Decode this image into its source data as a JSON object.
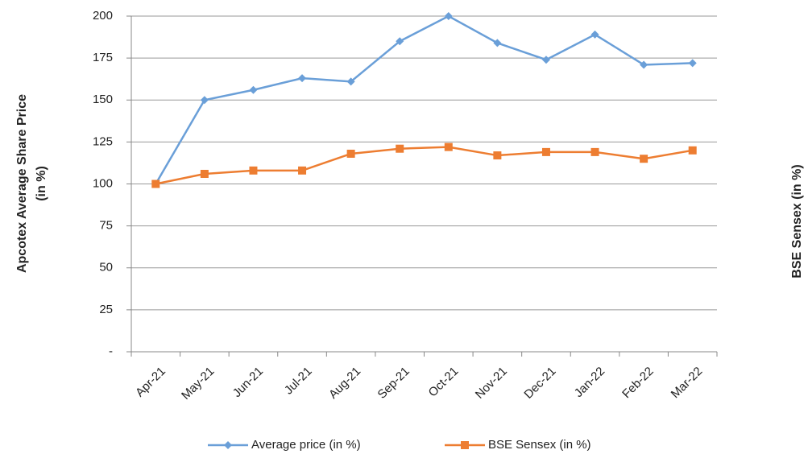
{
  "chart_data": {
    "type": "line",
    "y_label": [
      "Apcotex Average Share Price",
      "(in %)"
    ],
    "y2_label": "BSE Sensex (in %)",
    "categories": [
      "Apr-21",
      "May-21",
      "Jun-21",
      "Jul-21",
      "Aug-21",
      "Sep-21",
      "Oct-21",
      "Nov-21",
      "Dec-21",
      "Jan-22",
      "Feb-22",
      "Mar-22"
    ],
    "series": [
      {
        "name": "Average price (in %)",
        "color": "#6a9fd8",
        "marker": "diamond",
        "values": [
          100,
          150,
          156,
          163,
          161,
          185,
          200,
          184,
          174,
          189,
          171,
          172
        ]
      },
      {
        "name": "BSE Sensex (in %)",
        "color": "#ed7d31",
        "marker": "square",
        "values": [
          100,
          106,
          108,
          108,
          118,
          121,
          122,
          117,
          119,
          119,
          115,
          120
        ]
      }
    ],
    "ylim": [
      0,
      200
    ],
    "yticks": [
      {
        "value": 0,
        "label": "-"
      },
      25,
      50,
      75,
      100,
      125,
      150,
      175,
      200
    ],
    "grid": true,
    "legend": "bottom"
  }
}
